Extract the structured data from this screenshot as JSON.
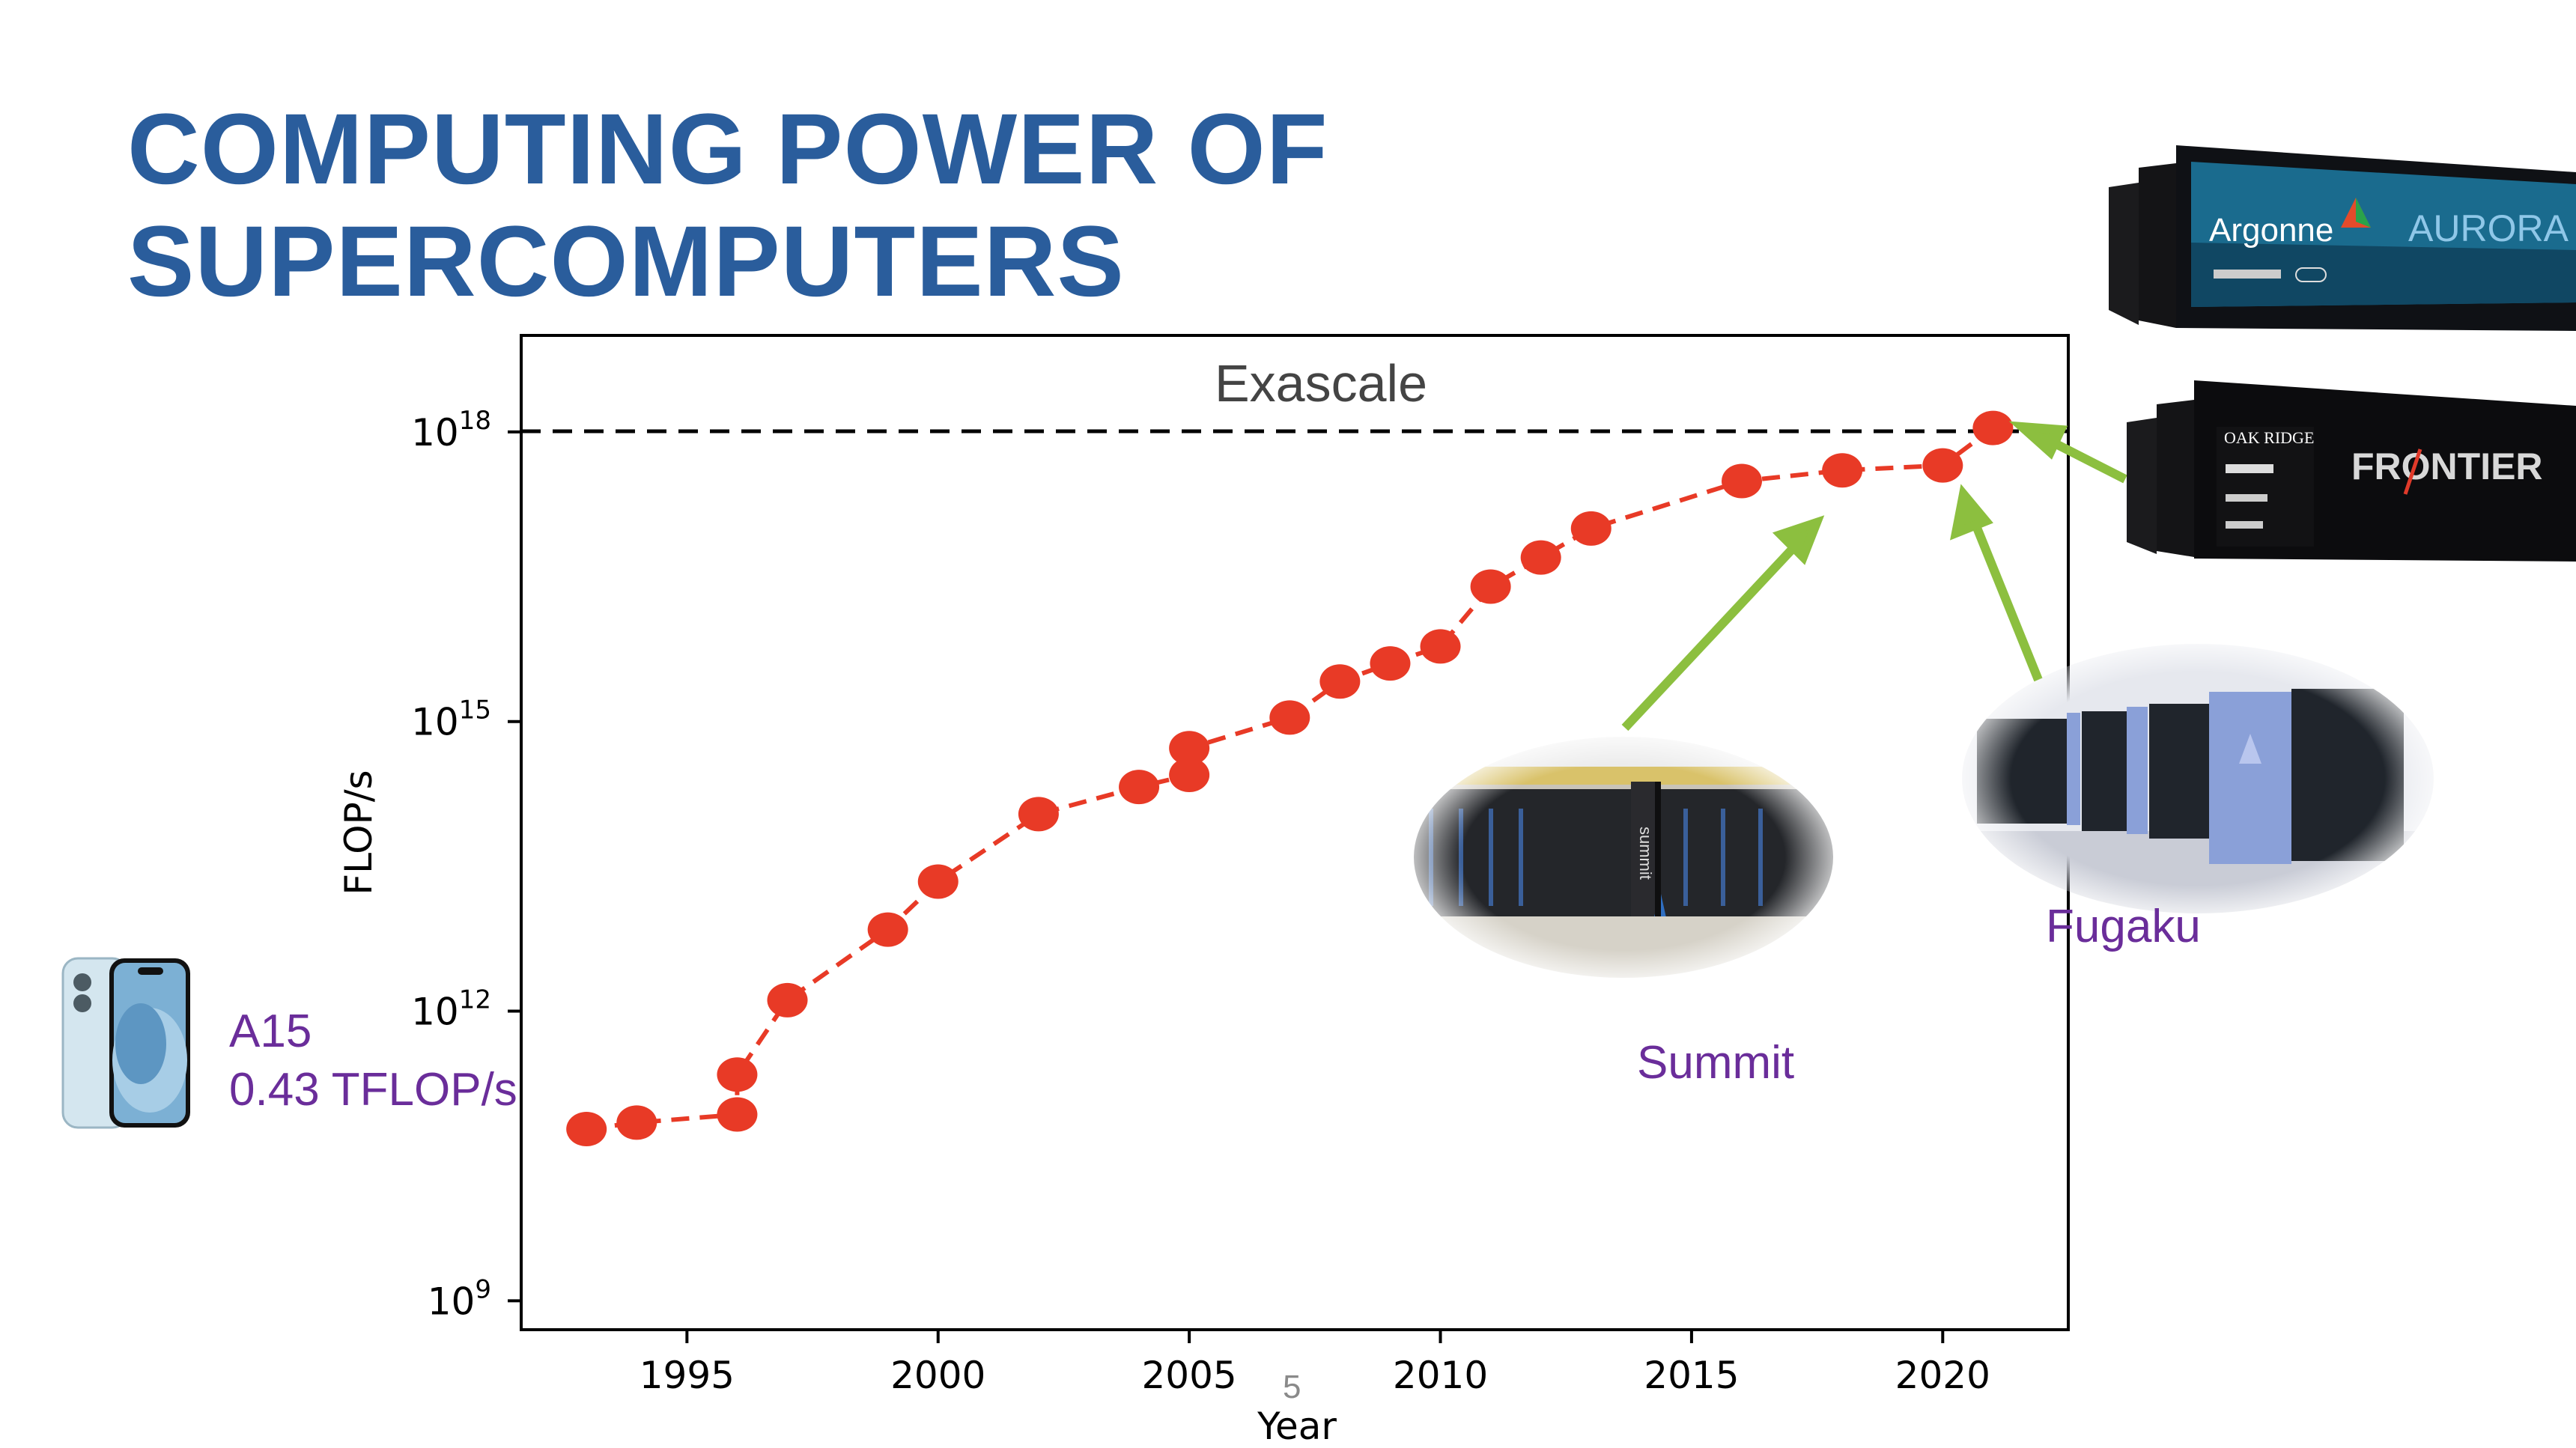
{
  "slide": {
    "title_line1": "COMPUTING POWER OF",
    "title_line2": "SUPERCOMPUTERS",
    "page_number": "5",
    "phone_label_line1": "A15",
    "phone_label_line2": "0.43 TFLOP/s",
    "summit_label": "Summit",
    "fugaku_label": "Fugaku",
    "aurora_banner": {
      "org": "Argonne",
      "name": "AURORA"
    },
    "frontier_banner": {
      "org": "OAK RIDGE",
      "name": "FRONTIER"
    },
    "summit_cabinet_text": "summit"
  },
  "colors": {
    "title": "#2a5d9c",
    "series": "#e83a26",
    "annotation_text": "#6a2d9a",
    "arrow": "#8cbf3f",
    "exascale_line": "#000000"
  },
  "chart_data": {
    "type": "scatter",
    "xlabel": "Year",
    "ylabel": "FLOP/s",
    "xlim": [
      1991.7,
      2022.5
    ],
    "ylim_log10": [
      8.7,
      19.0
    ],
    "y_scale": "log",
    "x_ticks": [
      1995,
      2000,
      2005,
      2010,
      2015,
      2020
    ],
    "y_ticks": [
      {
        "value": 1000000000.0,
        "base": "10",
        "exp": "9"
      },
      {
        "value": 1000000000000.0,
        "base": "10",
        "exp": "12"
      },
      {
        "value": 1000000000000000.0,
        "base": "10",
        "exp": "15"
      },
      {
        "value": 1e+18,
        "base": "10",
        "exp": "18"
      }
    ],
    "reference_line": {
      "y": 1e+18,
      "label": "Exascale",
      "style": "dashed"
    },
    "series": [
      {
        "line_style": "dashed",
        "x": [
          1993,
          1994,
          1996,
          1996,
          1997,
          1999,
          2000,
          2002,
          2004,
          2005,
          2005,
          2007,
          2008,
          2009,
          2010,
          2011,
          2012,
          2013,
          2016,
          2018,
          2020,
          2021
        ],
        "y": [
          60000000000.0,
          70000000000.0,
          85000000000.0,
          220000000000.0,
          1300000000000.0,
          7000000000000.0,
          22000000000000.0,
          110000000000000.0,
          210000000000000.0,
          280000000000000.0,
          530000000000000.0,
          1100000000000000.0,
          2600000000000000.0,
          4000000000000000.0,
          6000000000000000.0,
          2.5e+16,
          5e+16,
          1e+17,
          3.1e+17,
          4e+17,
          4.5e+17,
          1.1e+18
        ]
      }
    ],
    "grid": false,
    "legend": "none"
  }
}
